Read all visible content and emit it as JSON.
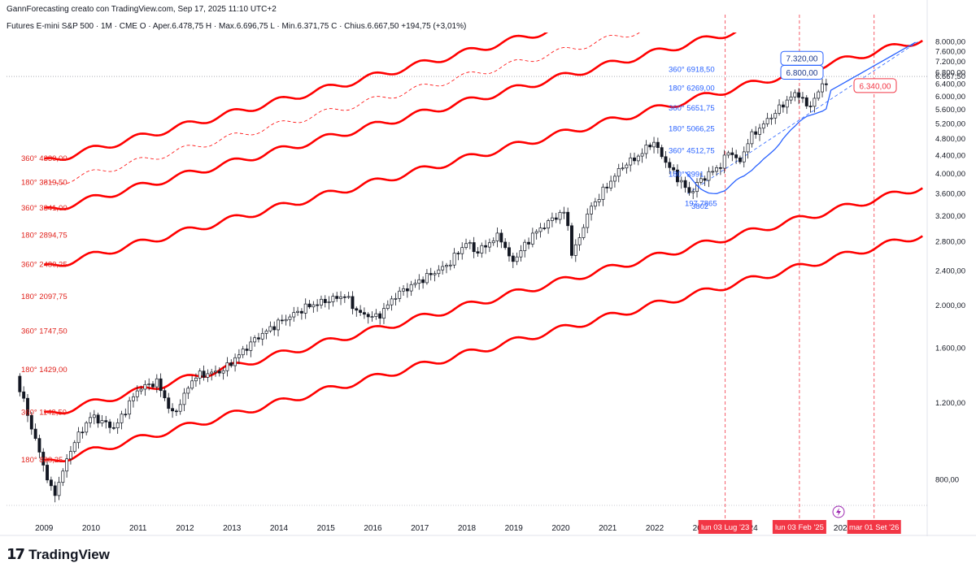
{
  "header": {
    "credit": "GannForecasting creato con TradingView.com, Sep 17, 2025 11:10 UTC+2",
    "symbol_line": "Futures E-mini S&P 500 · 1M · CME  O · Aper.6.478,75  H · Max.6.696,75  L · Min.6.371,75  C · Chius.6.667,50  +194,75 (+3,01%)"
  },
  "footer": {
    "logo_text": "TradingView",
    "logo_mark": "17"
  },
  "colors": {
    "channel": "#ff0000",
    "level_red": "#e0211b",
    "level_blue": "#2962ff",
    "ma": "#2962ff",
    "bull": "#ffffff",
    "bear": "#131722",
    "badge_red": "#f23645"
  },
  "chart_data": {
    "type": "candlestick",
    "title": "Futures E-mini S&P 500 · 1M · CME",
    "timeframe": "1M",
    "yscale": "log",
    "ylim": [
      700,
      8400
    ],
    "xlim": [
      2008.2,
      2027.8
    ],
    "y_ticks": [
      "8.000,00",
      "7.600,00",
      "7.200,00",
      "6.800,00",
      "6.400,00",
      "6.000,00",
      "5.600,00",
      "5.200,00",
      "4.800,00",
      "4.400,00",
      "4.000,00",
      "3.600,00",
      "3.200,00",
      "2.800,00",
      "2.400,00",
      "2.000,00",
      "1.600,00",
      "1.200,00",
      "800,00"
    ],
    "y_tick_values": [
      8000,
      7600,
      7200,
      6800,
      6400,
      6000,
      5600,
      5200,
      4800,
      4400,
      4000,
      3600,
      3200,
      2800,
      2400,
      2000,
      1600,
      1200,
      800
    ],
    "x_ticks": [
      "2009",
      "2010",
      "2011",
      "2012",
      "2013",
      "2014",
      "2015",
      "2016",
      "2017",
      "2018",
      "2019",
      "2020",
      "2021",
      "2022",
      "2023",
      "2024",
      "2025",
      "2026",
      "2027"
    ],
    "x_tick_values": [
      2009,
      2010,
      2011,
      2012,
      2013,
      2014,
      2015,
      2016,
      2017,
      2018,
      2019,
      2020,
      2021,
      2022,
      2023,
      2024,
      2025,
      2026,
      2027
    ],
    "last_price": {
      "value": 6667.5,
      "label": "6.667,50"
    },
    "ohlc": {
      "open": 6478.75,
      "high": 6696.75,
      "low": 6371.75,
      "close": 6667.5
    },
    "price_path": [
      {
        "t": 2008.4,
        "v": 1380
      },
      {
        "t": 2008.8,
        "v": 1000
      },
      {
        "t": 2009.2,
        "v": 730
      },
      {
        "t": 2009.6,
        "v": 960
      },
      {
        "t": 2010.0,
        "v": 1120
      },
      {
        "t": 2010.5,
        "v": 1050
      },
      {
        "t": 2011.0,
        "v": 1290
      },
      {
        "t": 2011.4,
        "v": 1340
      },
      {
        "t": 2011.75,
        "v": 1120
      },
      {
        "t": 2012.2,
        "v": 1380
      },
      {
        "t": 2012.8,
        "v": 1420
      },
      {
        "t": 2013.5,
        "v": 1680
      },
      {
        "t": 2014.0,
        "v": 1830
      },
      {
        "t": 2014.6,
        "v": 1990
      },
      {
        "t": 2015.4,
        "v": 2110
      },
      {
        "t": 2015.7,
        "v": 1920
      },
      {
        "t": 2016.1,
        "v": 1880
      },
      {
        "t": 2016.5,
        "v": 2120
      },
      {
        "t": 2017.0,
        "v": 2280
      },
      {
        "t": 2017.6,
        "v": 2480
      },
      {
        "t": 2018.0,
        "v": 2800
      },
      {
        "t": 2018.2,
        "v": 2640
      },
      {
        "t": 2018.7,
        "v": 2900
      },
      {
        "t": 2018.95,
        "v": 2500
      },
      {
        "t": 2019.4,
        "v": 2900
      },
      {
        "t": 2019.9,
        "v": 3200
      },
      {
        "t": 2020.1,
        "v": 3280
      },
      {
        "t": 2020.25,
        "v": 2580
      },
      {
        "t": 2020.6,
        "v": 3300
      },
      {
        "t": 2020.9,
        "v": 3650
      },
      {
        "t": 2021.3,
        "v": 4150
      },
      {
        "t": 2021.7,
        "v": 4420
      },
      {
        "t": 2021.95,
        "v": 4760
      },
      {
        "t": 2022.3,
        "v": 4150
      },
      {
        "t": 2022.75,
        "v": 3600
      },
      {
        "t": 2022.95,
        "v": 3850
      },
      {
        "t": 2023.4,
        "v": 4180
      },
      {
        "t": 2023.6,
        "v": 4550
      },
      {
        "t": 2023.8,
        "v": 4200
      },
      {
        "t": 2024.0,
        "v": 4800
      },
      {
        "t": 2024.4,
        "v": 5300
      },
      {
        "t": 2024.9,
        "v": 6000
      },
      {
        "t": 2025.1,
        "v": 6100
      },
      {
        "t": 2025.25,
        "v": 5600
      },
      {
        "t": 2025.4,
        "v": 5950
      },
      {
        "t": 2025.55,
        "v": 6300
      },
      {
        "t": 2025.71,
        "v": 6667.5
      }
    ],
    "channels": {
      "slope_per_year": 0.0642,
      "bands": [
        {
          "name": "band-1",
          "v2009": 4330,
          "style": "solid"
        },
        {
          "name": "band-2",
          "v2009": 3819.5,
          "style": "dashed-thin"
        },
        {
          "name": "band-3",
          "v2009": 3341,
          "style": "solid"
        },
        {
          "name": "band-4",
          "v2009": 2480.25,
          "style": "solid"
        },
        {
          "name": "band-5",
          "v2009": 1142.5,
          "style": "solid"
        },
        {
          "name": "band-6",
          "v2009": 888.25,
          "style": "solid"
        }
      ]
    },
    "gann_levels_red": [
      {
        "label": "360° 4330,00",
        "value": 4330
      },
      {
        "label": "180° 3819,50",
        "value": 3819.5
      },
      {
        "label": "360° 3341,00",
        "value": 3341
      },
      {
        "label": "180° 2894,75",
        "value": 2894.75
      },
      {
        "label": "360° 2480,25",
        "value": 2480.25
      },
      {
        "label": "180° 2097,75",
        "value": 2097.75
      },
      {
        "label": "360° 1747,50",
        "value": 1747.5
      },
      {
        "label": "180° 1429,00",
        "value": 1429
      },
      {
        "label": "360° 1142,50",
        "value": 1142.5
      },
      {
        "label": "180° 888,25",
        "value": 888.25
      }
    ],
    "gann_levels_blue": [
      {
        "label": "360° 6918,50",
        "value": 6918.5
      },
      {
        "label": "180° 6269,00",
        "value": 6269
      },
      {
        "label": "360° 5651,75",
        "value": 5651.75
      },
      {
        "label": "180° 5066,25",
        "value": 5066.25
      },
      {
        "label": "360° 4512,75",
        "value": 4512.75
      },
      {
        "label": "180° 3991",
        "value": 3991
      },
      {
        "label": "197,7865",
        "value": 3420
      },
      {
        "label": "3802",
        "value": 3370
      }
    ],
    "targets": [
      {
        "label": "7.320,00",
        "value": 7320,
        "style": "blue-box"
      },
      {
        "label": "6.800,00",
        "value": 6800,
        "style": "blue-box"
      },
      {
        "label": "6.340,00",
        "value": 6340,
        "style": "red-box"
      }
    ],
    "date_markers": [
      {
        "label": "lun 03 Lug '23",
        "t": 2023.5
      },
      {
        "label": "lun 03 Feb '25",
        "t": 2025.08
      },
      {
        "label": "mar 01 Set '26",
        "t": 2026.67
      }
    ]
  }
}
